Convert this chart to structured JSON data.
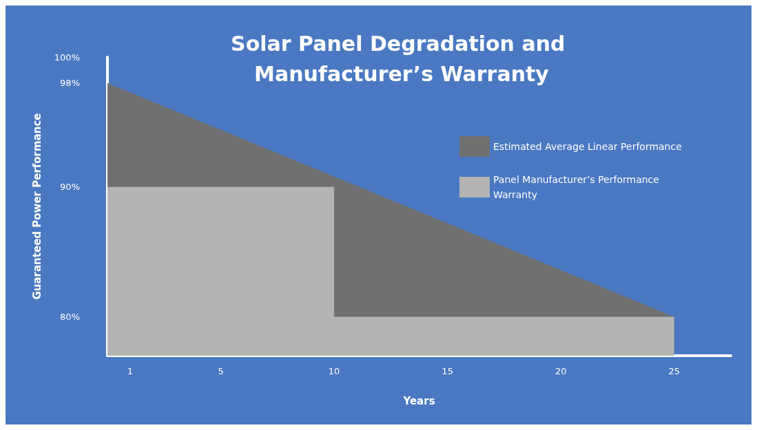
{
  "chart_data": {
    "type": "area",
    "title": "Solar Panel Degradation and Manufacturer’s Warranty",
    "xlabel": "Years",
    "ylabel": "Guaranteed Power Performance",
    "xlim": [
      0,
      27.5
    ],
    "xticks": [
      1,
      5,
      10,
      15,
      20,
      25
    ],
    "ylim": [
      77,
      100
    ],
    "yticks": [
      {
        "value": 80,
        "label": "80%"
      },
      {
        "value": 90,
        "label": "90%"
      },
      {
        "value": 98,
        "label": "98%"
      },
      {
        "value": 100,
        "label": "100%"
      }
    ],
    "series": [
      {
        "name": "Estimated Average Linear Performance",
        "color": "#707070",
        "x": [
          0,
          25
        ],
        "values": [
          98,
          80
        ]
      },
      {
        "name": "Panel Manufacturer’s Performance Warranty",
        "color": "#b4b4b4",
        "x": [
          0,
          10,
          10,
          25
        ],
        "values": [
          90,
          90,
          80,
          80
        ]
      }
    ],
    "grid": false,
    "legend": "top right"
  }
}
